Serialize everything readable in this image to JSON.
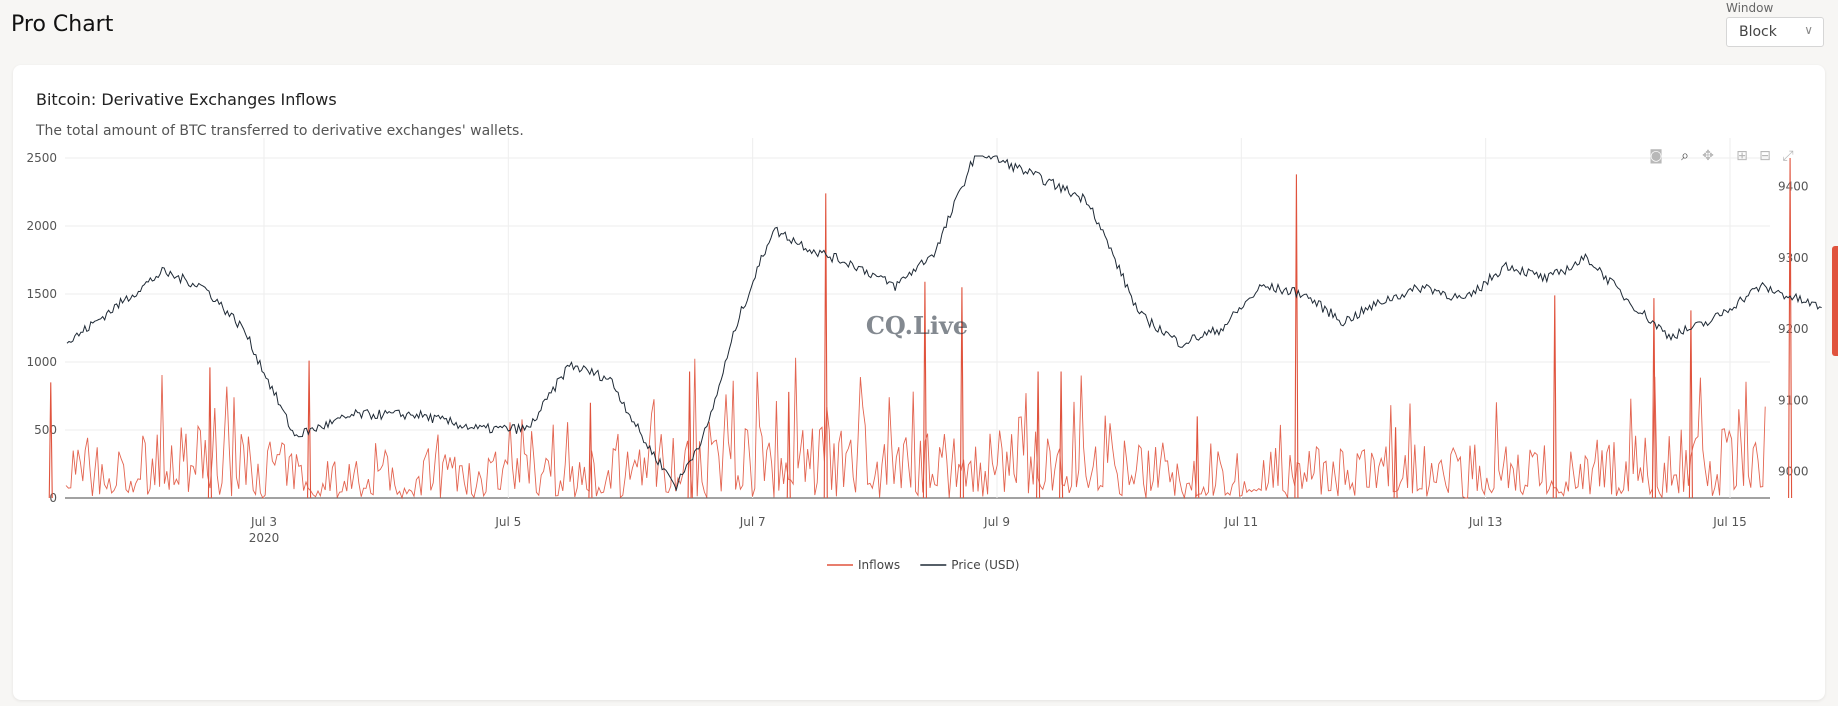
{
  "page": {
    "title": "Pro Chart"
  },
  "window": {
    "label": "Window",
    "value": "Block",
    "chevron_icon": "chevron-down-icon"
  },
  "card": {
    "title": "Bitcoin: Derivative Exchanges Inflows",
    "subtitle": "The total amount of BTC transferred to derivative exchanges' wallets."
  },
  "toolbar": {
    "items": [
      {
        "icon": "camera-icon",
        "glyph": "◙"
      },
      {
        "icon": "zoom-icon",
        "glyph": "⌕"
      },
      {
        "icon": "pan-icon",
        "glyph": "✥"
      },
      {
        "icon": "zoom-in-icon",
        "glyph": "⊞"
      },
      {
        "icon": "zoom-out-icon",
        "glyph": "⊟"
      },
      {
        "icon": "autoscale-icon",
        "glyph": "⤢"
      }
    ]
  },
  "colors": {
    "inflows": "#e0533d",
    "price": "#1f2a36",
    "accent": "#e0533d"
  },
  "watermark": "CQ.Live",
  "chart_data": {
    "type": "line",
    "x_range": [
      "2020-07-01",
      "2020-07-15"
    ],
    "x_ticks": [
      {
        "date": "2020-07-03",
        "label": "Jul 3",
        "sub": "2020"
      },
      {
        "date": "2020-07-05",
        "label": "Jul 5"
      },
      {
        "date": "2020-07-07",
        "label": "Jul 7"
      },
      {
        "date": "2020-07-09",
        "label": "Jul 9"
      },
      {
        "date": "2020-07-11",
        "label": "Jul 11"
      },
      {
        "date": "2020-07-13",
        "label": "Jul 13"
      },
      {
        "date": "2020-07-15",
        "label": "Jul 15"
      }
    ],
    "y_left": {
      "ticks": [
        0,
        500,
        1000,
        1500,
        2000,
        2500
      ],
      "range": [
        0,
        2500
      ]
    },
    "y_right": {
      "ticks": [
        9000,
        9100,
        9200,
        9300,
        9400
      ],
      "range": [
        8963,
        9440
      ]
    },
    "legend": {
      "position": "bottom-center"
    },
    "series": [
      {
        "name": "Inflows",
        "axis": "left",
        "color": "#e0533d",
        "baseline_points": [
          [
            "2020-07-01",
            250
          ],
          [
            "2020-07-02",
            280
          ],
          [
            "2020-07-03",
            180
          ],
          [
            "2020-07-04",
            200
          ],
          [
            "2020-07-05",
            160
          ],
          [
            "2020-07-06",
            300
          ],
          [
            "2020-07-07",
            310
          ],
          [
            "2020-07-08",
            250
          ],
          [
            "2020-07-09",
            280
          ],
          [
            "2020-07-10",
            180
          ],
          [
            "2020-07-11",
            200
          ],
          [
            "2020-07-12",
            210
          ],
          [
            "2020-07-13",
            220
          ],
          [
            "2020-07-14",
            270
          ],
          [
            "2020-07-15",
            280
          ]
        ],
        "peaks": [
          [
            "2020-07-01",
            850
          ],
          [
            "2020-07-02",
            960
          ],
          [
            "2020-07-03",
            1010
          ],
          [
            "2020-07-05",
            700
          ],
          [
            "2020-07-06",
            930
          ],
          [
            "2020-07-07",
            780
          ],
          [
            "2020-07-07",
            2240
          ],
          [
            "2020-07-08",
            1590
          ],
          [
            "2020-07-08",
            1550
          ],
          [
            "2020-07-09",
            930
          ],
          [
            "2020-07-09",
            930
          ],
          [
            "2020-07-10",
            600
          ],
          [
            "2020-07-11",
            2380
          ],
          [
            "2020-07-12",
            520
          ],
          [
            "2020-07-13",
            1490
          ],
          [
            "2020-07-14",
            1470
          ],
          [
            "2020-07-14",
            1380
          ],
          [
            "2020-07-15",
            2500
          ]
        ]
      },
      {
        "name": "Price (USD)",
        "axis": "right",
        "color": "#1f2a36",
        "points": [
          [
            "2020-07-01",
            9180
          ],
          [
            "2020-07-02",
            9280
          ],
          [
            "2020-07-02",
            9260
          ],
          [
            "2020-07-02",
            9200
          ],
          [
            "2020-07-03",
            9050
          ],
          [
            "2020-07-03",
            9080
          ],
          [
            "2020-07-04",
            9080
          ],
          [
            "2020-07-04",
            9060
          ],
          [
            "2020-07-05",
            9060
          ],
          [
            "2020-07-05",
            9150
          ],
          [
            "2020-07-05",
            9130
          ],
          [
            "2020-07-06",
            9040
          ],
          [
            "2020-07-06",
            8980
          ],
          [
            "2020-07-06",
            9060
          ],
          [
            "2020-07-06",
            9210
          ],
          [
            "2020-07-07",
            9340
          ],
          [
            "2020-07-07",
            9310
          ],
          [
            "2020-07-07",
            9290
          ],
          [
            "2020-07-08",
            9260
          ],
          [
            "2020-07-08",
            9310
          ],
          [
            "2020-07-08",
            9450
          ],
          [
            "2020-07-09",
            9420
          ],
          [
            "2020-07-09",
            9380
          ],
          [
            "2020-07-10",
            9220
          ],
          [
            "2020-07-10",
            9180
          ],
          [
            "2020-07-10",
            9200
          ],
          [
            "2020-07-11",
            9260
          ],
          [
            "2020-07-11",
            9250
          ],
          [
            "2020-07-11",
            9210
          ],
          [
            "2020-07-12",
            9240
          ],
          [
            "2020-07-12",
            9260
          ],
          [
            "2020-07-12",
            9240
          ],
          [
            "2020-07-13",
            9290
          ],
          [
            "2020-07-13",
            9270
          ],
          [
            "2020-07-13",
            9300
          ],
          [
            "2020-07-14",
            9240
          ],
          [
            "2020-07-14",
            9190
          ],
          [
            "2020-07-14",
            9210
          ],
          [
            "2020-07-15",
            9260
          ],
          [
            "2020-07-15",
            9230
          ]
        ]
      }
    ]
  }
}
